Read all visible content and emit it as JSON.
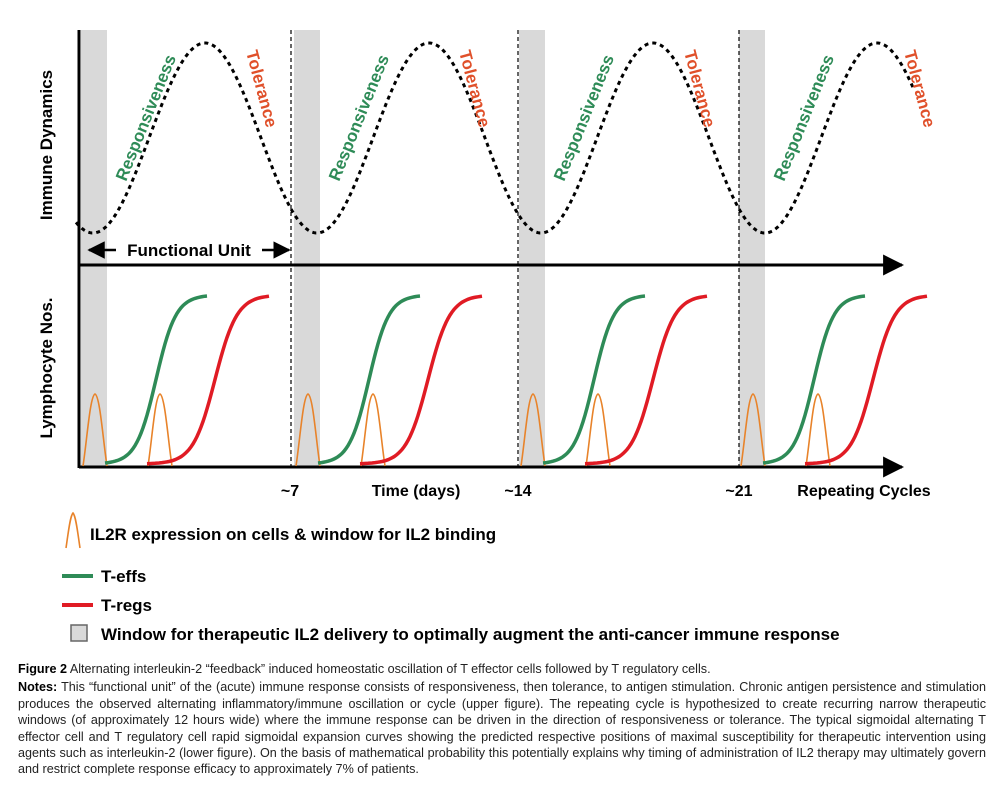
{
  "figure": {
    "upper_ylabel": "Immune Dynamics",
    "lower_ylabel": "Lymphocyte Nos.",
    "functional_unit": "Functional Unit",
    "phase_labels": {
      "responsiveness": "Responsiveness",
      "tolerance": "Tolerance"
    },
    "x_ticks": [
      "~7",
      "~14",
      "~21"
    ],
    "x_axis_label": "Time (days)",
    "x_end_label": "Repeating Cycles"
  },
  "legend": {
    "il2r": "IL2R expression on cells & window for IL2 binding",
    "teffs": "T-effs",
    "tregs": "T-regs",
    "window": "Window for therapeutic IL2 delivery to optimally augment the anti-cancer immune response"
  },
  "colors": {
    "teffs": "#2e8b57",
    "tregs": "#e01b24",
    "il2r": "#e8832a",
    "responsiveness": "#2e8b57",
    "tolerance": "#e0502a",
    "window_fill": "#d9d9d9"
  },
  "caption": {
    "label": "Figure 2",
    "title": "Alternating interleukin-2 “feedback” induced homeostatic oscillation of T effector cells followed by T regulatory cells.",
    "notes_label": "Notes:",
    "notes": "This “functional unit” of the (acute) immune response consists of responsiveness, then tolerance, to antigen stimulation. Chronic antigen persistence and stimulation produces the observed alternating inflammatory/immune oscillation or cycle (upper figure). The repeating cycle is hypothesized to create recurring narrow therapeutic windows (of approximately 12 hours wide) where the immune response can be driven in the direction of responsiveness or tolerance. The typical sigmoidal alternating T effector cell and T regulatory cell rapid sigmoidal expansion curves showing the predicted respective positions of maximal susceptibility for therapeutic intervention using agents such as interleukin-2 (lower figure). On the basis of mathematical probability this potentially explains why timing of administration of IL2 therapy may ultimately govern and restrict complete response efficacy to approximately 7% of patients."
  }
}
